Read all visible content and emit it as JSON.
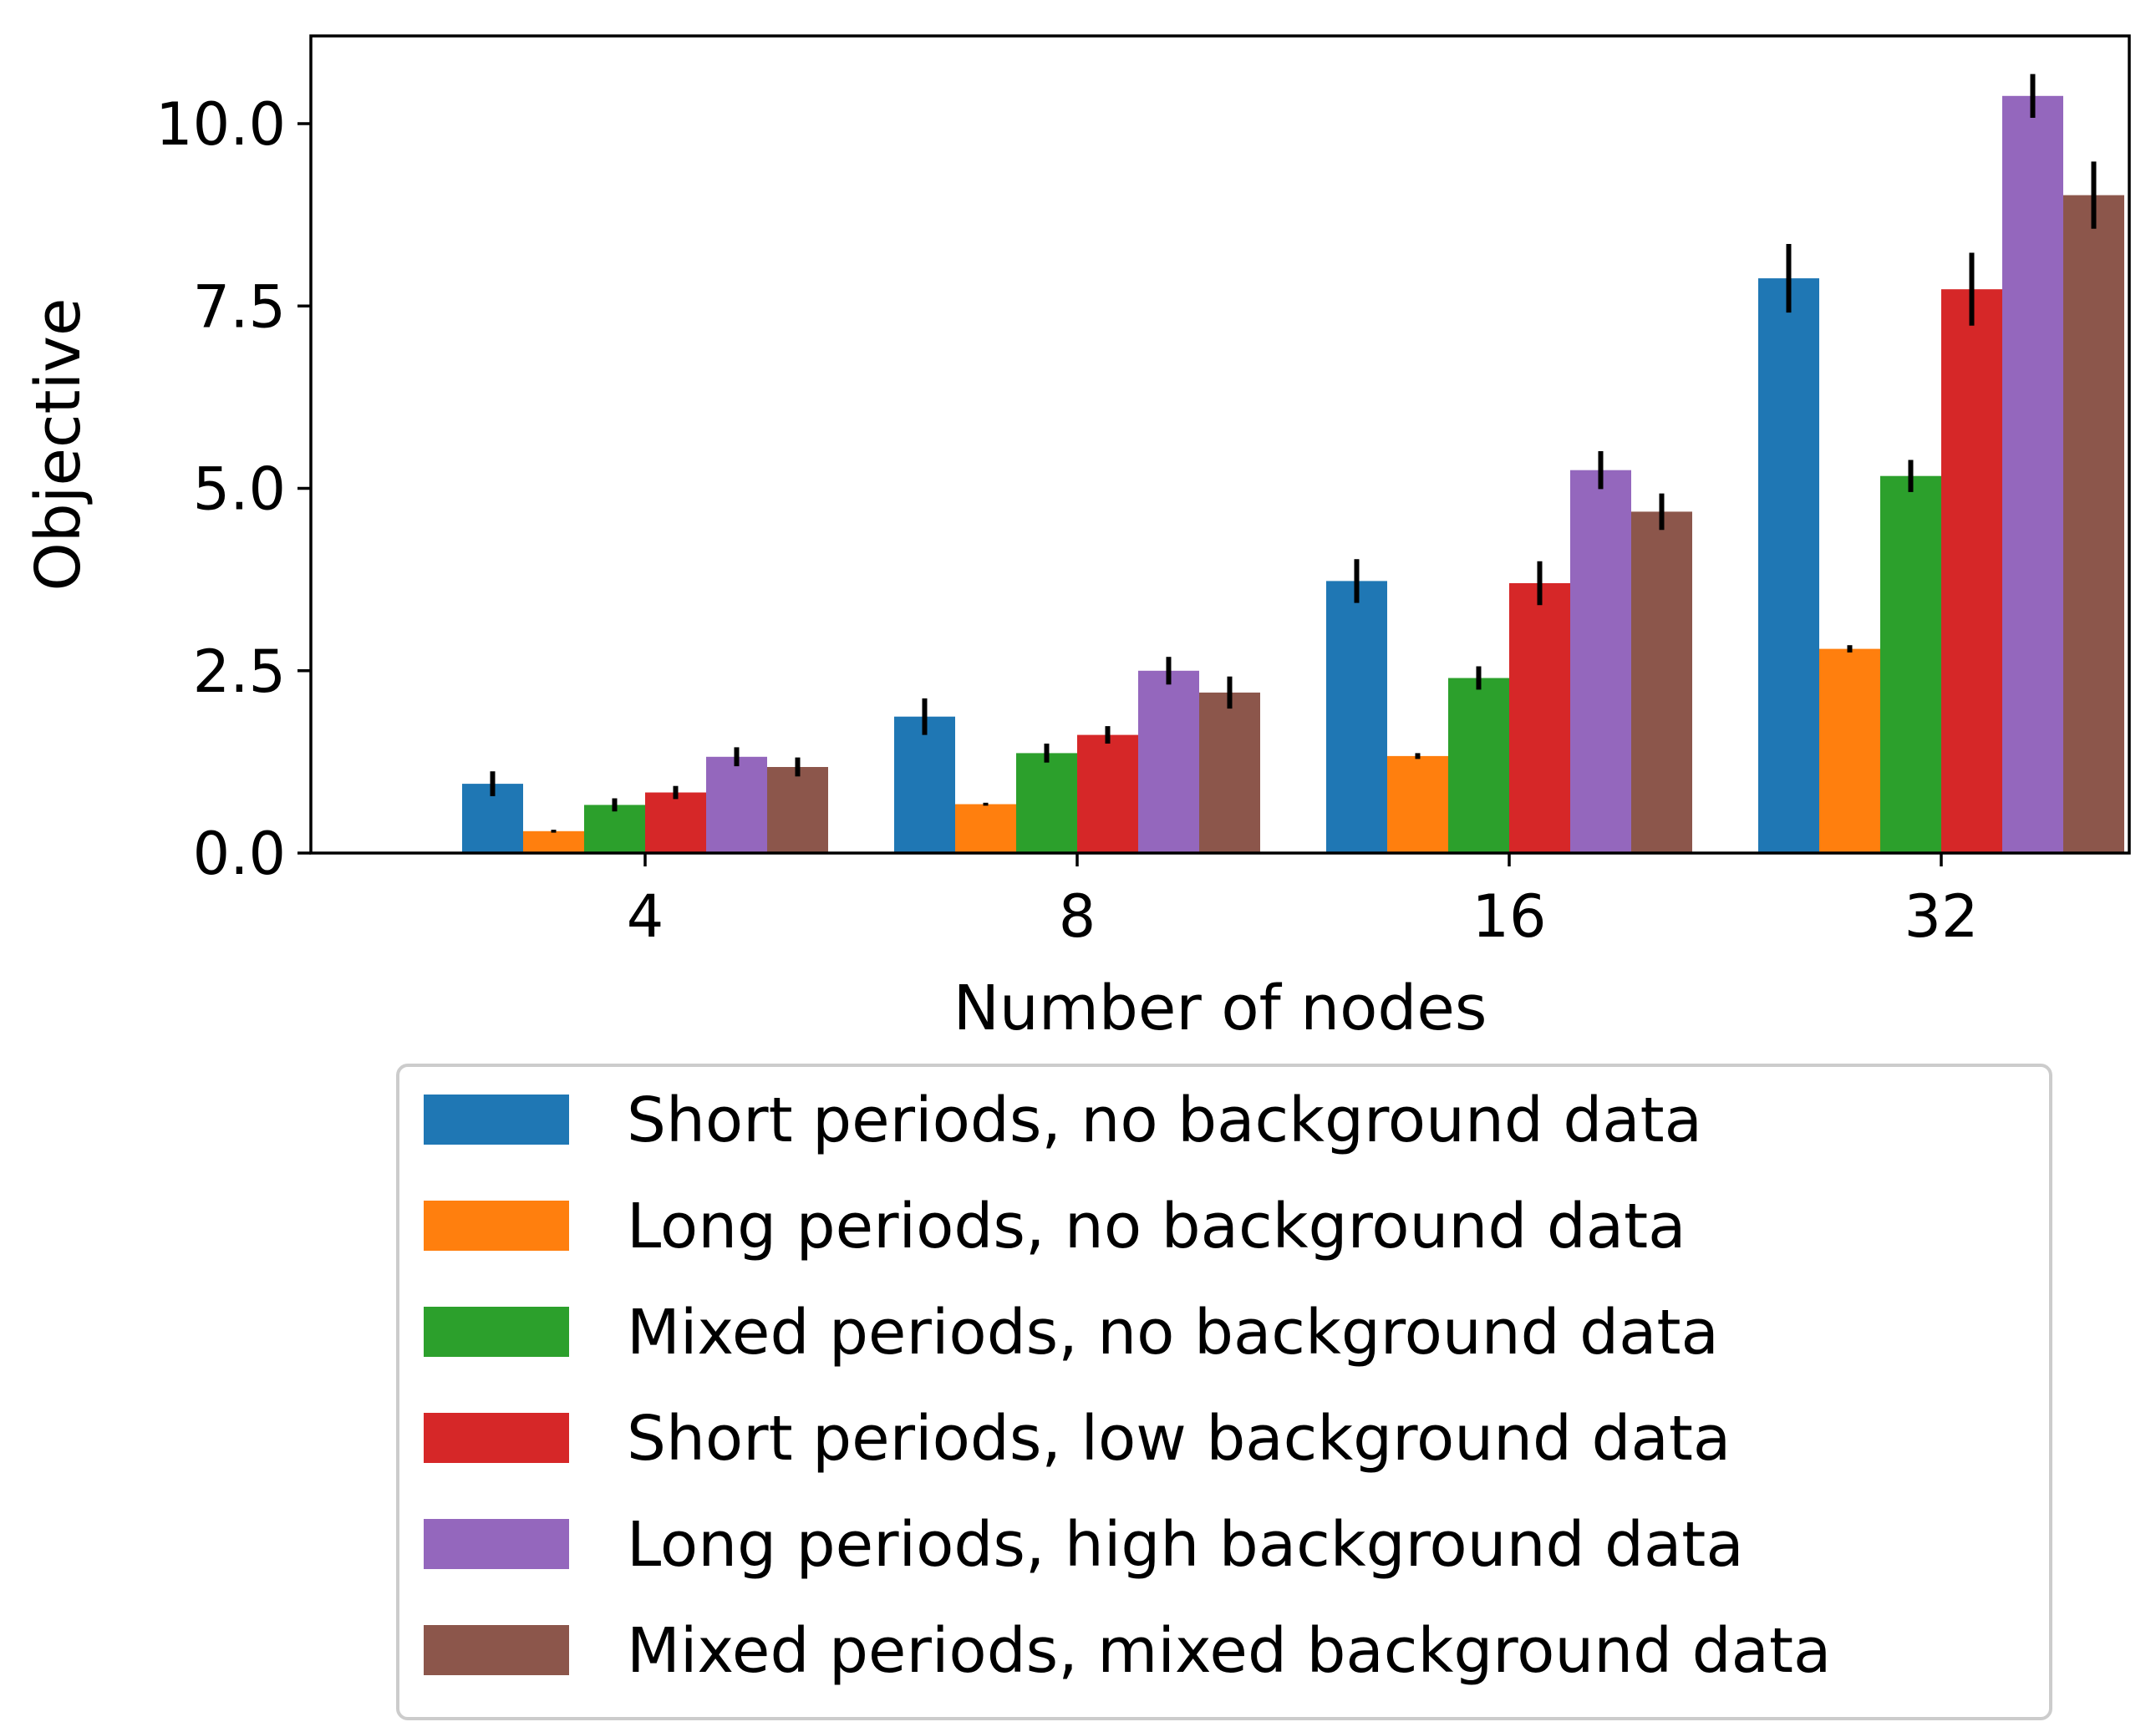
{
  "chart_data": {
    "type": "bar",
    "title": "",
    "xlabel": "Number of nodes",
    "ylabel": "Objective",
    "categories": [
      "4",
      "8",
      "16",
      "32"
    ],
    "yticks": [
      "0.0",
      "2.5",
      "5.0",
      "7.5",
      "10.0"
    ],
    "ylim": [
      0,
      11.2
    ],
    "grid": false,
    "legend_position": "bottom",
    "series": [
      {
        "name": "Short periods, no background data",
        "color": "#1f77b4",
        "values": [
          0.95,
          1.87,
          3.73,
          7.88
        ],
        "errors": [
          0.17,
          0.25,
          0.3,
          0.47
        ]
      },
      {
        "name": "Long periods, no background data",
        "color": "#ff7f0e",
        "values": [
          0.3,
          0.67,
          1.33,
          2.8
        ],
        "errors": [
          0.02,
          0.02,
          0.04,
          0.05
        ]
      },
      {
        "name": "Mixed periods, no background data",
        "color": "#2ca02c",
        "values": [
          0.66,
          1.37,
          2.4,
          5.17
        ],
        "errors": [
          0.09,
          0.13,
          0.16,
          0.22
        ]
      },
      {
        "name": "Short periods, low background data",
        "color": "#d62728",
        "values": [
          0.83,
          1.62,
          3.7,
          7.73
        ],
        "errors": [
          0.09,
          0.12,
          0.3,
          0.5
        ]
      },
      {
        "name": "Long periods, high background data",
        "color": "#9467bd",
        "values": [
          1.32,
          2.5,
          5.25,
          10.38
        ],
        "errors": [
          0.13,
          0.19,
          0.26,
          0.3
        ]
      },
      {
        "name": "Mixed periods, mixed background data",
        "color": "#8c564b",
        "values": [
          1.18,
          2.2,
          4.68,
          9.02
        ],
        "errors": [
          0.13,
          0.22,
          0.25,
          0.46
        ]
      }
    ]
  }
}
